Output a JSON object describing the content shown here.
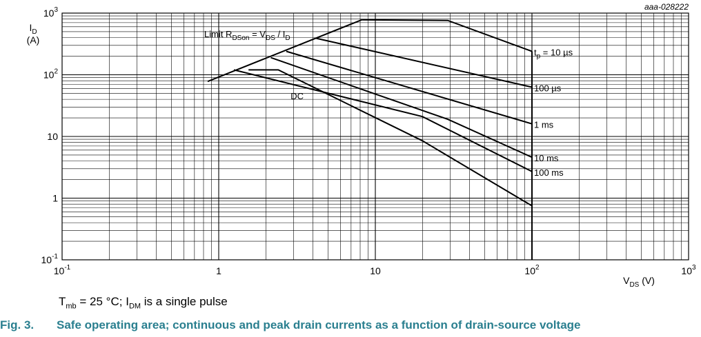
{
  "chart_data": {
    "type": "line",
    "x_scale": "log",
    "y_scale": "log",
    "xlim": [
      0.1,
      1000
    ],
    "ylim": [
      0.1,
      1000
    ],
    "grid": true,
    "code": "aaa-028222",
    "x_ticks": [
      {
        "value": 0.1,
        "base": "10",
        "exp": "-1"
      },
      {
        "value": 1,
        "base": "1",
        "exp": ""
      },
      {
        "value": 10,
        "base": "10",
        "exp": ""
      },
      {
        "value": 100,
        "base": "10",
        "exp": "2"
      },
      {
        "value": 1000,
        "base": "10",
        "exp": "3"
      }
    ],
    "y_ticks": [
      {
        "value": 1000,
        "base": "10",
        "exp": "3"
      },
      {
        "value": 100,
        "base": "10",
        "exp": "2"
      },
      {
        "value": 10,
        "base": "10",
        "exp": ""
      },
      {
        "value": 1,
        "base": "1",
        "exp": ""
      },
      {
        "value": 0.1,
        "base": "10",
        "exp": "-1"
      }
    ],
    "xlabel": {
      "main": "V",
      "sub": "DS",
      "unit": " (V)"
    },
    "ylabel": {
      "main": "I",
      "sub": "D",
      "unit": "(A)"
    },
    "limit_label": {
      "pre": "Limit R",
      "sub1": "DSon",
      "mid": " = V",
      "sub2": "DS",
      "mid2": " / I",
      "sub3": "D"
    },
    "limit_line": [
      [
        0.85,
        78
      ],
      [
        8.2,
        780
      ]
    ],
    "series": [
      {
        "name": "tp = 10 µs",
        "label": {
          "pre": "t",
          "sub": "p",
          "post": " = 10 µs"
        },
        "points": [
          [
            8.2,
            780
          ],
          [
            29,
            760
          ],
          [
            100,
            240
          ]
        ]
      },
      {
        "name": "100 µs",
        "label": {
          "pre": "100 µs",
          "sub": "",
          "post": ""
        },
        "points": [
          [
            4.2,
            390
          ],
          [
            100,
            63
          ]
        ]
      },
      {
        "name": "1 ms",
        "label": {
          "pre": "1 ms",
          "sub": "",
          "post": ""
        },
        "points": [
          [
            2.7,
            240
          ],
          [
            100,
            16
          ]
        ]
      },
      {
        "name": "10 ms",
        "label": {
          "pre": "10 ms",
          "sub": "",
          "post": ""
        },
        "points": [
          [
            2.15,
            190
          ],
          [
            29,
            19
          ],
          [
            100,
            4.6
          ]
        ]
      },
      {
        "name": "100 ms",
        "label": {
          "pre": "100 ms",
          "sub": "",
          "post": ""
        },
        "points": [
          [
            1.25,
            120
          ],
          [
            20,
            21
          ],
          [
            100,
            2.7
          ]
        ]
      },
      {
        "name": "DC",
        "label": {
          "pre": "DC",
          "sub": "",
          "post": ""
        },
        "points": [
          [
            1.55,
            120
          ],
          [
            2.4,
            120
          ],
          [
            20,
            8.5
          ],
          [
            100,
            0.75
          ]
        ]
      }
    ],
    "vds_limit": {
      "x": 100,
      "y_from": 0.1,
      "y_to": 240
    }
  },
  "caption": {
    "t": "T",
    "t_sub": "mb",
    "mid": " = 25 °C; I",
    "i_sub": "DM",
    "end": " is a single pulse"
  },
  "figure": {
    "number": "Fig. 3.",
    "title": "Safe operating area; continuous and peak drain currents as a function of drain-source voltage"
  }
}
